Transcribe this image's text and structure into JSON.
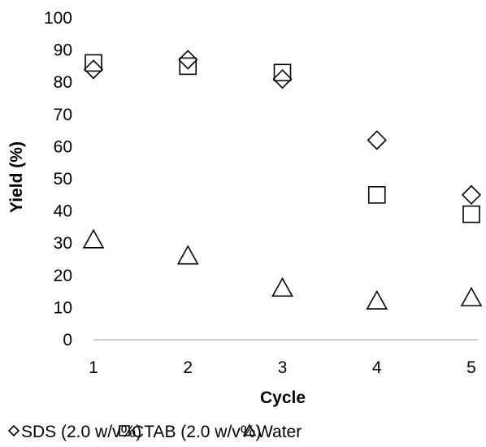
{
  "chart_data": {
    "type": "scatter",
    "xlabel": "Cycle",
    "ylabel": "Yield (%)",
    "xlim": [
      1,
      5
    ],
    "ylim": [
      0,
      100
    ],
    "x_ticks": [
      "1",
      "2",
      "3",
      "4",
      "5"
    ],
    "y_ticks": [
      "0",
      "10",
      "20",
      "30",
      "40",
      "50",
      "60",
      "70",
      "80",
      "90",
      "100"
    ],
    "grid": false,
    "legend_position": "bottom",
    "x": [
      1,
      2,
      3,
      4,
      5
    ],
    "series": [
      {
        "name": "SDS (2.0 w/v%)",
        "marker": "diamond",
        "values": [
          84,
          87,
          81,
          62,
          45
        ]
      },
      {
        "name": "CTAB (2.0 w/v%)",
        "marker": "square",
        "values": [
          86,
          85,
          83,
          45,
          39
        ]
      },
      {
        "name": "Water",
        "marker": "triangle",
        "values": [
          31,
          26,
          16,
          12,
          13
        ]
      }
    ]
  }
}
